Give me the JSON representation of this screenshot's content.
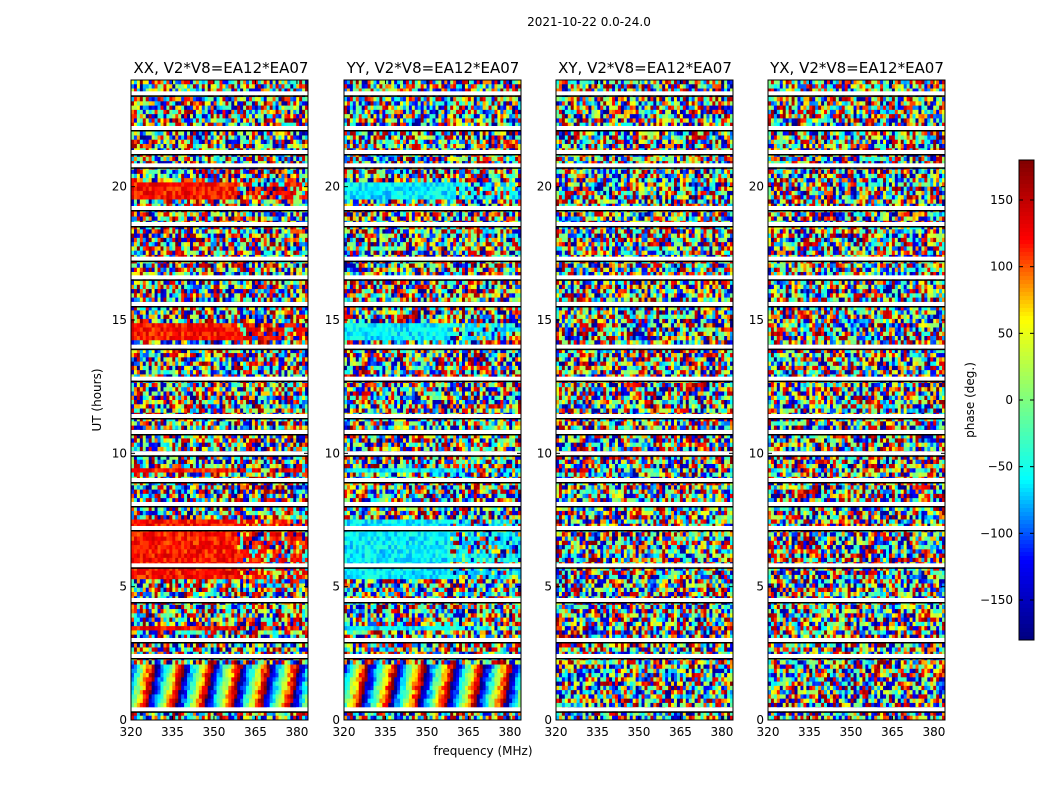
{
  "chart_data": {
    "type": "heatmap",
    "suptitle": "2021-10-22 0.0-24.0",
    "xlabel": "frequency (MHz)",
    "ylabel": "UT (hours)",
    "xlim": [
      320,
      384
    ],
    "ylim": [
      0,
      24
    ],
    "xticks": [
      320,
      335,
      350,
      365,
      380
    ],
    "yticks": [
      0,
      5,
      10,
      15,
      20
    ],
    "colorbar": {
      "label": "phase (deg.)",
      "range": [
        -180,
        180
      ],
      "ticks": [
        150,
        100,
        50,
        0,
        -50,
        -100,
        -150
      ],
      "tick_labels": [
        "150",
        "100",
        "50",
        "0",
        "−50",
        "−100",
        "−150"
      ],
      "colormap": [
        "#00007f",
        "#0000ff",
        "#00ffff",
        "#7fff7f",
        "#ffff00",
        "#ff0000",
        "#7f0000"
      ]
    },
    "panels": [
      {
        "title": "XX, V2*V8=EA12*EA07",
        "bias_phase_deg": 120,
        "bias_ut_ranges": [
          [
            19.6,
            20.2
          ],
          [
            14.2,
            14.9
          ],
          [
            9.3,
            9.5
          ],
          [
            5.3,
            7.6
          ],
          [
            3.4,
            3.6
          ]
        ],
        "coherent_band_ut": [
          0.4,
          2.1
        ]
      },
      {
        "title": "YY, V2*V8=EA12*EA07",
        "bias_phase_deg": -60,
        "bias_ut_ranges": [
          [
            19.6,
            20.2
          ],
          [
            14.2,
            14.9
          ],
          [
            9.3,
            9.5
          ],
          [
            5.3,
            7.6
          ],
          [
            3.4,
            3.6
          ]
        ],
        "coherent_band_ut": [
          0.4,
          2.1
        ]
      },
      {
        "title": "XY, V2*V8=EA12*EA07",
        "bias_phase_deg": null,
        "bias_ut_ranges": [],
        "coherent_band_ut": null
      },
      {
        "title": "YX, V2*V8=EA12*EA07",
        "bias_phase_deg": null,
        "bias_ut_ranges": [],
        "coherent_band_ut": null
      }
    ],
    "blank_ut_rows": [
      23.5,
      22.2,
      21.3,
      20.8,
      19.2,
      18.6,
      17.3,
      16.6,
      15.6,
      14.0,
      12.8,
      11.4,
      10.8,
      10.0,
      9.0,
      8.1,
      7.2,
      5.8,
      4.5,
      3.0,
      2.4,
      0.4
    ]
  }
}
